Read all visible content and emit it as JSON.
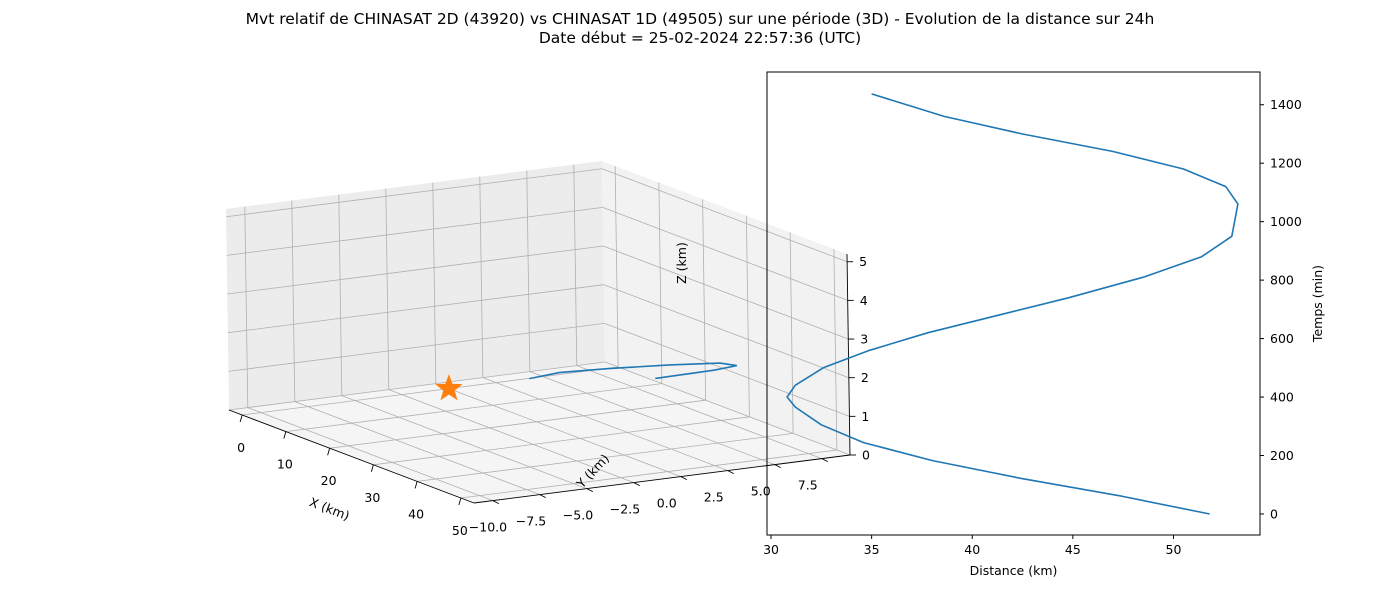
{
  "figure": {
    "title_line1": "Mvt relatif de CHINASAT 2D (43920) vs CHINASAT 1D (49505) sur une période (3D) - Evolution de la distance sur 24h",
    "title_line2": "Date début = 25-02-2024 22:57:36 (UTC)"
  },
  "colors": {
    "series": "#1f77b4",
    "marker": "#ff7f0e",
    "grid": "#b0b0b0",
    "pane": "#f2f2f2"
  },
  "chart_data": [
    {
      "type": "scatter",
      "projection": "3d",
      "xlabel": "X (km)",
      "ylabel": "Y (km)",
      "zlabel": "Z (km)",
      "xlim": [
        -3,
        53
      ],
      "ylim": [
        -11,
        9
      ],
      "zlim": [
        0,
        5.2
      ],
      "x_ticks": [
        "0",
        "10",
        "20",
        "30",
        "40",
        "50"
      ],
      "y_ticks": [
        "−10.0",
        "−7.5",
        "−5.0",
        "−2.5",
        "0.0",
        "2.5",
        "5.0",
        "7.5"
      ],
      "z_ticks": [
        "0",
        "1",
        "2",
        "3",
        "4",
        "5"
      ],
      "grid": true,
      "series": [
        {
          "marker": "star",
          "x": [
            0
          ],
          "y": [
            0
          ],
          "z": [
            0
          ]
        },
        {
          "marker": "line",
          "x": [
            51.8,
            50.6,
            47.2,
            42.5,
            37.8,
            34.2,
            32.3,
            32.4
          ],
          "y": [
            -1.0,
            2.4,
            4.4,
            4.6,
            3.0,
            0.6,
            -1.6,
            -3.2
          ],
          "z": [
            2.55,
            2.5,
            2.35,
            2.2,
            2.05,
            1.95,
            1.9,
            1.85
          ]
        }
      ]
    },
    {
      "type": "line",
      "xlabel": "Distance (km)",
      "ylabel": "Temps (min)",
      "xlim": [
        29.8,
        54.3
      ],
      "ylim": [
        -72,
        1512
      ],
      "x_ticks": [
        30,
        35,
        40,
        45,
        50
      ],
      "y_ticks": [
        0,
        200,
        400,
        600,
        800,
        1000,
        1200,
        1400
      ],
      "y_axis_side": "right",
      "series": [
        {
          "x": [
            51.8,
            47.4,
            42.4,
            38.0,
            34.6,
            32.5,
            31.2,
            30.8,
            31.2,
            32.6,
            34.9,
            37.8,
            41.3,
            44.8,
            48.5,
            51.4,
            52.9,
            53.2,
            52.6,
            50.5,
            47.0,
            42.5,
            38.6,
            35.0
          ],
          "y": [
            0,
            61,
            122,
            183,
            244,
            305,
            366,
            400,
            440,
            500,
            560,
            620,
            680,
            740,
            810,
            880,
            950,
            1060,
            1120,
            1180,
            1240,
            1300,
            1360,
            1437
          ]
        }
      ]
    }
  ]
}
